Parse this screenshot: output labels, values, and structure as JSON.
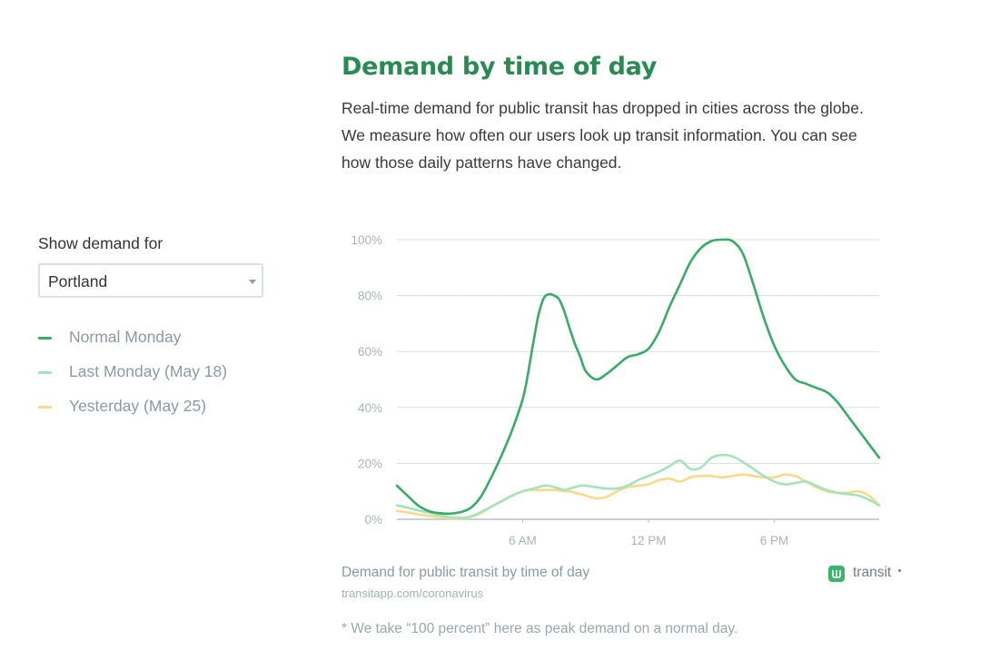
{
  "header": {
    "title": "Demand by time of day",
    "intro_lines": [
      "Real-time demand for public transit has dropped in cities across the globe.",
      "We measure how often our users look up transit information. You can see",
      "how those daily patterns have changed."
    ]
  },
  "sidebar": {
    "show_label": "Show demand for",
    "city_select_value": "Portland",
    "legend": [
      {
        "label": "Normal Monday",
        "color": "#3aaa68"
      },
      {
        "label": "Last Monday (May 18)",
        "color": "#a3e3bc"
      },
      {
        "label": "Yesterday (May 25)",
        "color": "#fbd98a"
      }
    ]
  },
  "footer": {
    "caption": "Demand for public transit by time of day",
    "source": "transitapp.com/coronavirus",
    "note": "* We take “100 percent” here as peak demand on a normal day.",
    "brand": "transit"
  },
  "chart_data": {
    "type": "line",
    "x_unit": "hour of day",
    "xlim": [
      0,
      23
    ],
    "ylim": [
      0,
      100
    ],
    "y_ticks": [
      0,
      20,
      40,
      60,
      80,
      100
    ],
    "y_tick_labels": [
      "0%",
      "20%",
      "40%",
      "60%",
      "80%",
      "100%"
    ],
    "x_ticks": [
      6,
      12,
      18
    ],
    "x_tick_labels": [
      "6 AM",
      "12 PM",
      "6 PM"
    ],
    "grid": true,
    "x": [
      0,
      0.5,
      1,
      1.5,
      2,
      2.5,
      3,
      3.5,
      4,
      4.5,
      5,
      5.5,
      6,
      6.25,
      6.5,
      6.75,
      7,
      7.25,
      7.5,
      7.75,
      8,
      8.25,
      8.5,
      8.75,
      9,
      9.5,
      10,
      10.5,
      11,
      11.5,
      12,
      12.5,
      13,
      13.5,
      14,
      14.5,
      15,
      15.5,
      16,
      16.5,
      17,
      17.5,
      18,
      18.5,
      19,
      19.5,
      20,
      20.5,
      21,
      21.5,
      22,
      22.5,
      23
    ],
    "series": [
      {
        "name": "Normal Monday",
        "color": "#3aaa68",
        "values": [
          12,
          8.5,
          5,
          3,
          2.2,
          2,
          2.5,
          4,
          8,
          15,
          23,
          32,
          43,
          52,
          63,
          73,
          79,
          80.5,
          80,
          78.5,
          74,
          68,
          62.5,
          58,
          53,
          50,
          52,
          55,
          58,
          59,
          61,
          67,
          76,
          84,
          92,
          97,
          99.5,
          100,
          99.5,
          95,
          84,
          72,
          62,
          55,
          50,
          48.5,
          47,
          45.5,
          42,
          37,
          32,
          27,
          22
        ]
      },
      {
        "name": "Last Monday (May 18)",
        "color": "#a3e3bc",
        "values": [
          5,
          4.2,
          3.2,
          2.4,
          1.5,
          0.8,
          0.5,
          1,
          2.5,
          4.5,
          6.5,
          8.5,
          10,
          10.5,
          11,
          11.5,
          12,
          12,
          11.5,
          11,
          10.5,
          11,
          11.5,
          12,
          12,
          11.5,
          11,
          11,
          12,
          14,
          15.5,
          17,
          19,
          21,
          18,
          18.5,
          22,
          23,
          22.5,
          20.5,
          18,
          15.5,
          13.5,
          12.5,
          13,
          13.5,
          12,
          10.5,
          9.5,
          9,
          8.5,
          7,
          5
        ]
      },
      {
        "name": "Yesterday (May 25)",
        "color": "#fbd98a",
        "values": [
          3,
          2.5,
          1.8,
          1.2,
          0.8,
          0.4,
          0.3,
          0.8,
          2.2,
          4.5,
          6.5,
          8.5,
          10,
          10.5,
          10.5,
          10.5,
          10.5,
          10.5,
          10.5,
          10.3,
          10,
          10,
          9.5,
          9,
          8.5,
          7.5,
          8,
          10,
          11.5,
          12,
          12.5,
          14,
          14.5,
          13.5,
          15,
          15.5,
          15.5,
          15,
          15.5,
          16,
          15.5,
          15,
          15,
          16,
          15.5,
          13.5,
          11.5,
          10,
          9.5,
          9.5,
          10,
          8.5,
          5
        ]
      }
    ]
  }
}
